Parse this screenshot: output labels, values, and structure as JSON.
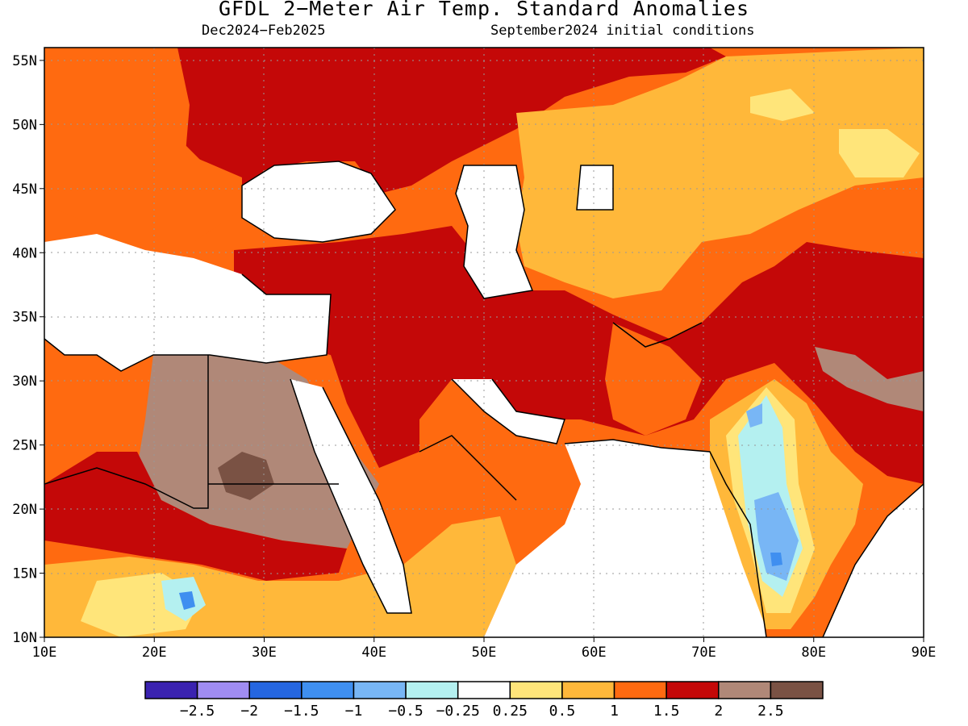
{
  "title": "GFDL 2−Meter Air Temp. Standard Anomalies",
  "subtitle_left": "Dec2024−Feb2025",
  "subtitle_right": "September2024 initial conditions",
  "map": {
    "lon_range": [
      10,
      90
    ],
    "lat_range": [
      10,
      56
    ],
    "x_ticks": [
      "10E",
      "20E",
      "30E",
      "40E",
      "50E",
      "60E",
      "70E",
      "80E",
      "90E"
    ],
    "y_ticks": [
      "10N",
      "15N",
      "20N",
      "25N",
      "30N",
      "35N",
      "40N",
      "45N",
      "50N",
      "55N"
    ],
    "gridlines": "dotted"
  },
  "colorbar": {
    "colors": [
      "#3a22b0",
      "#a08cf2",
      "#2566e0",
      "#3f8ff0",
      "#78b6f5",
      "#b4f0f0",
      "#ffffff",
      "#ffe57a",
      "#ffb83a",
      "#ff6a10",
      "#c40808",
      "#b08878",
      "#7a5244"
    ],
    "labels": [
      "−2.5",
      "−2",
      "−1.5",
      "−1",
      "−0.5",
      "−0.25",
      "0.25",
      "0.5",
      "1",
      "1.5",
      "2",
      "2.5"
    ]
  },
  "colors": {
    "white": "#ffffff",
    "yellow": "#ffe57a",
    "lightorange": "#ffb83a",
    "orange": "#ff6a10",
    "red": "#c40808",
    "brown": "#b08878",
    "darkbrown": "#7a5244",
    "cyan": "#b4f0f0",
    "lightblue": "#78b6f5",
    "blue": "#3f8ff0"
  }
}
